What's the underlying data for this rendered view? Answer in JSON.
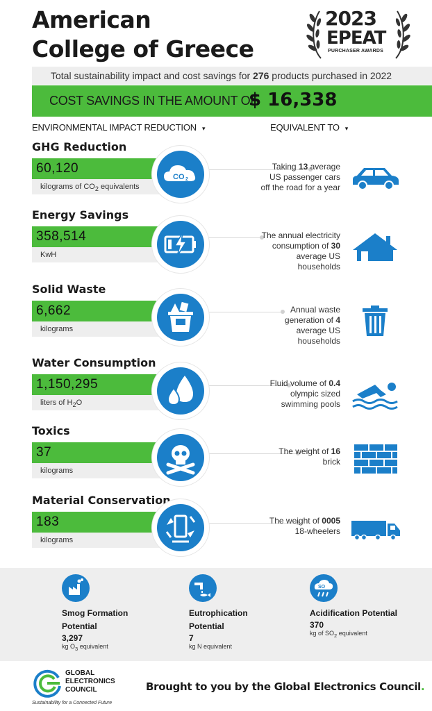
{
  "header": {
    "title_line1": "American",
    "title_line2": "College of Greece",
    "award_year": "2023",
    "award_name": "EPEAT",
    "award_sub": "PURCHASER AWARDS"
  },
  "summary": {
    "text_before": "Total sustainability impact and cost savings for ",
    "products": "276",
    "text_after": " products purchased in 2022"
  },
  "savings": {
    "label": "COST SAVINGS IN THE AMOUNT OF",
    "amount": "$ 16,338"
  },
  "columns": {
    "left": "ENVIRONMENTAL IMPACT REDUCTION",
    "right": "EQUIVALENT TO",
    "caret": "▾"
  },
  "metrics": [
    {
      "name": "GHG Reduction",
      "value": "60,120",
      "unit_before": "kilograms of CO",
      "unit_sub": "2",
      "unit_after": " equivalents",
      "icon": "co2-cloud-icon",
      "eq_before": "Taking",
      "eq_bold": "13",
      "eq_after": "average US passenger cars off the road for a year",
      "eq_icon": "car-icon"
    },
    {
      "name": "Energy Savings",
      "value": "358,514",
      "unit_before": "KwH",
      "unit_sub": "",
      "unit_after": "",
      "icon": "battery-bolt-icon",
      "eq_before": "The annual electricity consumption of",
      "eq_bold": "30",
      "eq_after": "average US households",
      "eq_icon": "house-icon"
    },
    {
      "name": "Solid Waste",
      "value": "6,662",
      "unit_before": "kilograms",
      "unit_sub": "",
      "unit_after": "",
      "icon": "waste-bin-icon",
      "eq_before": "Annual waste generation of",
      "eq_bold": "4",
      "eq_after": "average US households",
      "eq_icon": "trash-can-icon"
    },
    {
      "name": "Water Consumption",
      "value": "1,150,295",
      "unit_before": "liters of H",
      "unit_sub": "2",
      "unit_after": "O",
      "icon": "water-drops-icon",
      "eq_before": "Fluid volume of",
      "eq_bold": "0.4",
      "eq_after": "olympic sized swimming pools",
      "eq_icon": "swimmer-icon"
    },
    {
      "name": "Toxics",
      "value": "37",
      "unit_before": "kilograms",
      "unit_sub": "",
      "unit_after": "",
      "icon": "skull-crossbones-icon",
      "eq_before": "The weight of",
      "eq_bold": "16",
      "eq_after": "brick",
      "eq_icon": "brick-wall-icon"
    },
    {
      "name": "Material Conservation",
      "value": "183",
      "unit_before": "kilograms",
      "unit_sub": "",
      "unit_after": "",
      "icon": "recycle-phone-icon",
      "eq_before": "The weight of",
      "eq_bold": "0005",
      "eq_after": "18-wheelers",
      "eq_icon": "truck-icon"
    }
  ],
  "potentials": [
    {
      "name": "Smog Formation Potential",
      "value": "3,297",
      "unit_before": "kg O",
      "unit_sub": "3",
      "unit_after": " equivalent",
      "icon": "factory-icon"
    },
    {
      "name": "Eutrophication Potential",
      "value": "7",
      "unit_before": "kg N equivalent",
      "unit_sub": "",
      "unit_after": "",
      "icon": "pipe-fish-icon"
    },
    {
      "name": "Acidification Potential",
      "value": "370",
      "unit_before": "kg of SO",
      "unit_sub": "2",
      "unit_after": " equivalent",
      "icon": "acid-rain-icon"
    }
  ],
  "footer": {
    "org_line1": "GLOBAL",
    "org_line2": "ELECTRONICS",
    "org_line3": "COUNCIL",
    "tagline": "Sustainability for a Connected Future",
    "brought": "Brought to you by the Global Electronics Council",
    "period": "."
  },
  "colors": {
    "green": "#4cbb3c",
    "blue": "#1b7fc9",
    "gray": "#eeeeee"
  }
}
